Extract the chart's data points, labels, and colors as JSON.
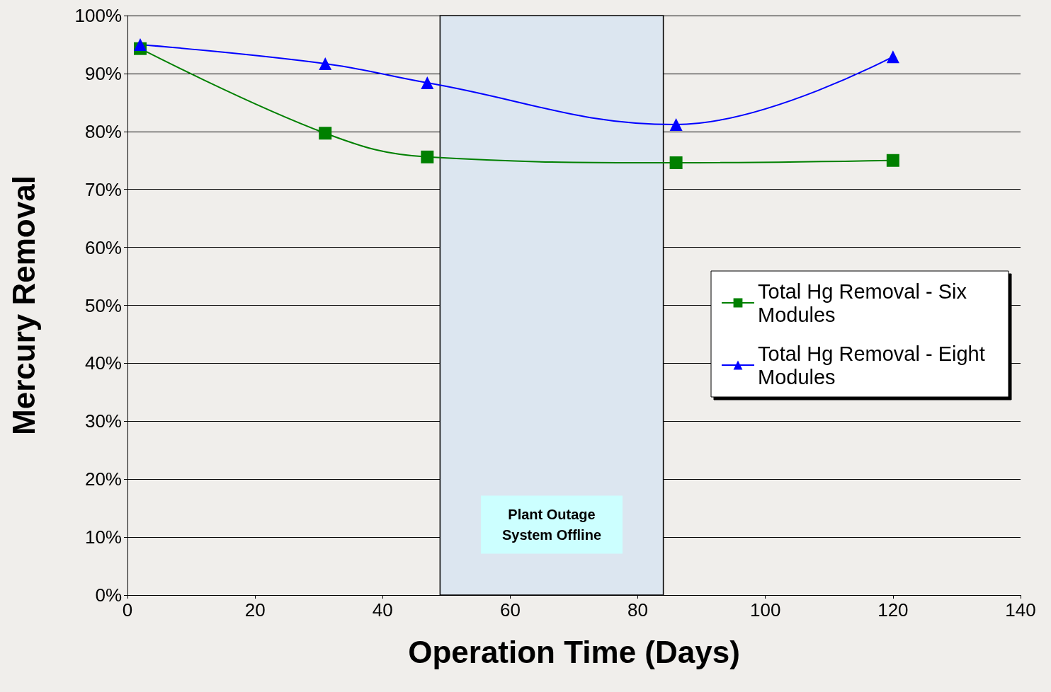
{
  "chart_data": {
    "type": "line",
    "xlabel": "Operation Time (Days)",
    "ylabel": "Mercury Removal",
    "xlim": [
      0,
      140
    ],
    "xticks": [
      0,
      20,
      40,
      60,
      80,
      100,
      120,
      140
    ],
    "ylim": [
      0,
      100
    ],
    "yticks": [
      {
        "value": 0,
        "label": "0%"
      },
      {
        "value": 10,
        "label": "10%"
      },
      {
        "value": 20,
        "label": "20%"
      },
      {
        "value": 30,
        "label": "30%"
      },
      {
        "value": 40,
        "label": "40%"
      },
      {
        "value": 50,
        "label": "50%"
      },
      {
        "value": 60,
        "label": "60%"
      },
      {
        "value": 70,
        "label": "70%"
      },
      {
        "value": 80,
        "label": "80%"
      },
      {
        "value": 90,
        "label": "90%"
      },
      {
        "value": 100,
        "label": "100%"
      }
    ],
    "grid": "y",
    "legend": "right",
    "line_style": "solid",
    "bands": [
      {
        "axis": "x",
        "from": 49,
        "to": 84,
        "label": "Plant Outage\nSystem Offline",
        "color": "#dce6f0"
      }
    ],
    "series": [
      {
        "name": "Total Hg Removal - Six Modules",
        "color": "#008000",
        "marker": "square",
        "x": [
          2,
          31,
          47,
          86,
          120
        ],
        "values": [
          94.3,
          79.7,
          75.6,
          74.6,
          75
        ]
      },
      {
        "name": "Total Hg Removal - Eight Modules",
        "color": "#0000ff",
        "marker": "triangle",
        "x": [
          2,
          31,
          47,
          86,
          120
        ],
        "values": [
          95,
          91.7,
          88.4,
          81.2,
          92.9
        ]
      }
    ]
  }
}
